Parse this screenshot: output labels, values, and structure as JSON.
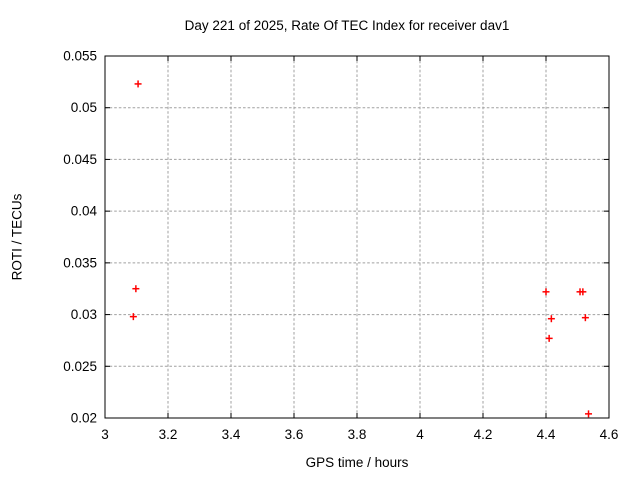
{
  "chart_data": {
    "type": "scatter",
    "title": "Day 221 of 2025, Rate Of TEC Index for receiver dav1",
    "xlabel": "GPS time / hours",
    "ylabel": "ROTI / TECUs",
    "xlim": [
      3,
      4.6
    ],
    "ylim": [
      0.02,
      0.055
    ],
    "xticks": [
      3,
      3.2,
      3.4,
      3.6,
      3.8,
      4,
      4.2,
      4.4,
      4.6
    ],
    "xtick_labels": [
      "3",
      "3.2",
      "3.4",
      "3.6",
      "3.8",
      "4",
      "4.2",
      "4.4",
      "4.6"
    ],
    "yticks": [
      0.02,
      0.025,
      0.03,
      0.035,
      0.04,
      0.045,
      0.05,
      0.055
    ],
    "ytick_labels": [
      "0.02",
      "0.025",
      "0.03",
      "0.035",
      "0.04",
      "0.045",
      "0.05",
      "0.055"
    ],
    "grid": true,
    "legend": "none",
    "marker": "plus",
    "colors": {
      "marker": "#ff0000",
      "grid": "#a0a0a0",
      "axis": "#000000",
      "text": "#000000",
      "background": "#ffffff"
    },
    "series": [
      {
        "name": "ROTI",
        "points": [
          [
            3.105,
            0.0523
          ],
          [
            3.098,
            0.0325
          ],
          [
            3.09,
            0.0298
          ],
          [
            4.4,
            0.0322
          ],
          [
            4.41,
            0.0277
          ],
          [
            4.417,
            0.0296
          ],
          [
            4.508,
            0.0322
          ],
          [
            4.517,
            0.0322
          ],
          [
            4.525,
            0.0297
          ],
          [
            4.535,
            0.0204
          ]
        ]
      }
    ]
  }
}
